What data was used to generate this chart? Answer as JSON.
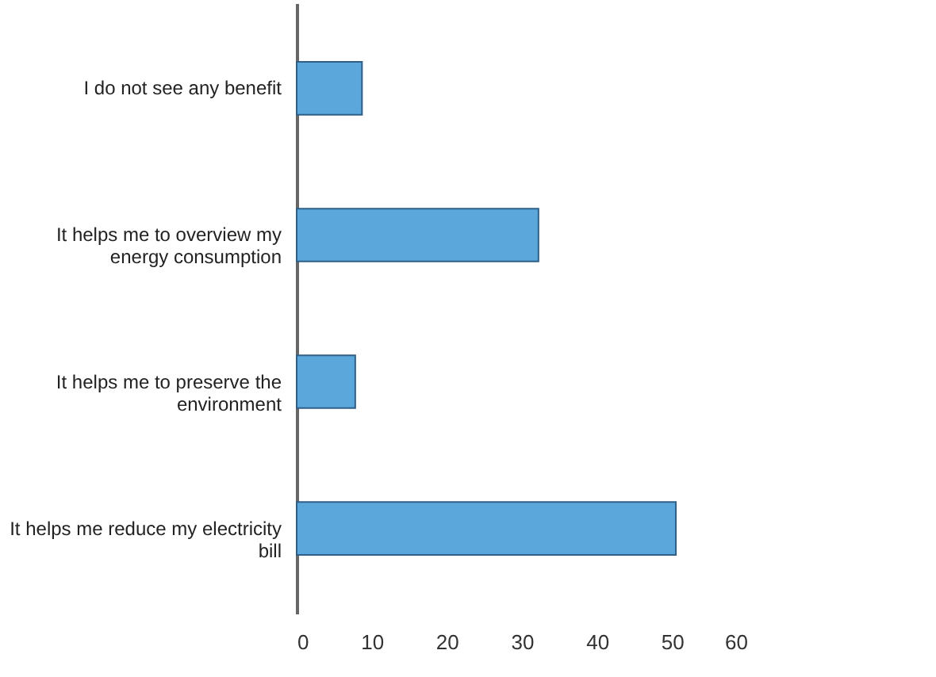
{
  "chart_data": {
    "type": "bar",
    "orientation": "horizontal",
    "categories": [
      "I do not see any benefit",
      "It helps me to overview my\nenergy consumption",
      "It helps me to preserve the\nenvironment",
      "It helps me reduce my electricity\nbill"
    ],
    "values": [
      8.7,
      32.2,
      7.8,
      50.5
    ],
    "color": "#5ba7dc",
    "xlim": [
      0,
      60
    ],
    "xticks": [
      0,
      10,
      20,
      30,
      40,
      50,
      60
    ],
    "grid": false
  }
}
